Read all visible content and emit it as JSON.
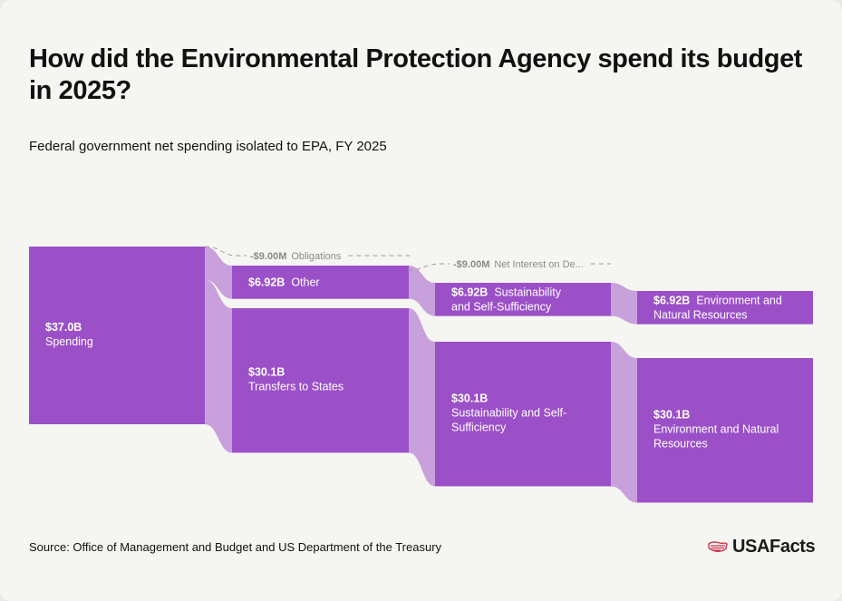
{
  "title": "How did the Environmental Protection Agency spend its budget in 2025?",
  "subtitle": "Federal government net spending isolated to EPA, FY 2025",
  "source": "Source: Office of Management and Budget and US Department of the Treasury",
  "brand": {
    "name": "USAFacts",
    "icon": "us-map-flag-icon"
  },
  "colors": {
    "node": "#9b50c8",
    "link": "#c8a0dc",
    "negative_line": "#9a9a9a",
    "brand_icon": "#d0304a"
  },
  "chart_data": {
    "type": "sankey",
    "units": "USD",
    "nodes": [
      {
        "id": "spending",
        "column": 0,
        "value": 37.0,
        "amount": "$37.0B",
        "label_lines": [
          "Spending"
        ]
      },
      {
        "id": "other",
        "column": 1,
        "value": 6.92,
        "amount": "$6.92B",
        "label_lines": [
          "Other"
        ]
      },
      {
        "id": "transfers",
        "column": 1,
        "value": 30.1,
        "amount": "$30.1B",
        "label_lines": [
          "Transfers to States"
        ]
      },
      {
        "id": "sust_a",
        "column": 2,
        "value": 6.92,
        "amount": "$6.92B",
        "label_lines": [
          "Sustainability",
          "and Self-Sufficiency"
        ]
      },
      {
        "id": "sust_b",
        "column": 2,
        "value": 30.1,
        "amount": "$30.1B",
        "label_lines": [
          "Sustainability and Self-",
          "Sufficiency"
        ]
      },
      {
        "id": "env_a",
        "column": 3,
        "value": 6.92,
        "amount": "$6.92B",
        "label_lines": [
          "Environment and",
          "Natural Resources"
        ]
      },
      {
        "id": "env_b",
        "column": 3,
        "value": 30.1,
        "amount": "$30.1B",
        "label_lines": [
          "Environment and Natural",
          "Resources"
        ]
      }
    ],
    "links": [
      {
        "source": "spending",
        "target": "other",
        "value": 6.92
      },
      {
        "source": "spending",
        "target": "transfers",
        "value": 30.1
      },
      {
        "source": "other",
        "target": "sust_a",
        "value": 6.92
      },
      {
        "source": "transfers",
        "target": "sust_b",
        "value": 30.1
      },
      {
        "source": "sust_a",
        "target": "env_a",
        "value": 6.92
      },
      {
        "source": "sust_b",
        "target": "env_b",
        "value": 30.1
      }
    ],
    "negative_flows": [
      {
        "from_column": 0,
        "to_column": 1,
        "value": -0.009,
        "amount": "-$9.00M",
        "label": "Obligations"
      },
      {
        "from_column": 1,
        "to_column": 2,
        "value": -0.009,
        "amount": "-$9.00M",
        "label": "Net Interest on De..."
      }
    ]
  }
}
